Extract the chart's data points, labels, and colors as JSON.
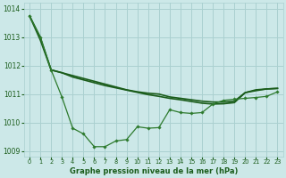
{
  "title": "Graphe pression niveau de la mer (hPa)",
  "background_color": "#cce8e8",
  "grid_color": "#aad0d0",
  "line_color1": "#1a5c1a",
  "line_color2": "#1a5c1a",
  "line_color3": "#2d7a2d",
  "xlim": [
    -0.5,
    23.5
  ],
  "ylim": [
    1008.8,
    1014.2
  ],
  "yticks": [
    1009,
    1010,
    1011,
    1012,
    1013,
    1014
  ],
  "xticks": [
    0,
    1,
    2,
    3,
    4,
    5,
    6,
    7,
    8,
    9,
    10,
    11,
    12,
    13,
    14,
    15,
    16,
    17,
    18,
    19,
    20,
    21,
    22,
    23
  ],
  "series1_x": [
    0,
    1,
    2,
    3,
    4,
    5,
    6,
    7,
    8,
    9,
    10,
    11,
    12,
    13,
    14,
    15,
    16,
    17,
    18,
    19,
    20,
    21,
    22,
    23
  ],
  "series1_y": [
    1013.75,
    1013.0,
    1011.85,
    1011.75,
    1011.65,
    1011.55,
    1011.45,
    1011.35,
    1011.25,
    1011.15,
    1011.08,
    1011.03,
    1011.0,
    1010.9,
    1010.85,
    1010.8,
    1010.75,
    1010.72,
    1010.72,
    1010.75,
    1011.05,
    1011.15,
    1011.18,
    1011.2
  ],
  "series2_x": [
    0,
    1,
    2,
    3,
    4,
    5,
    6,
    7,
    8,
    9,
    10,
    11,
    12,
    13,
    14,
    15,
    16,
    17,
    18,
    19,
    20,
    21,
    22,
    23
  ],
  "series2_y": [
    1013.75,
    1012.9,
    1011.85,
    1011.75,
    1011.6,
    1011.5,
    1011.4,
    1011.3,
    1011.22,
    1011.14,
    1011.06,
    1010.98,
    1010.92,
    1010.85,
    1010.8,
    1010.74,
    1010.68,
    1010.65,
    1010.66,
    1010.7,
    1011.05,
    1011.12,
    1011.18,
    1011.2
  ],
  "series3_x": [
    0,
    1,
    2,
    3,
    4,
    5,
    6,
    7,
    8,
    9,
    10,
    11,
    12,
    13,
    14,
    15,
    16,
    17,
    18,
    19,
    20,
    21,
    22,
    23
  ],
  "series3_y": [
    1013.75,
    1013.0,
    1011.85,
    1010.9,
    1009.8,
    1009.6,
    1009.15,
    1009.15,
    1009.35,
    1009.4,
    1009.85,
    1009.8,
    1009.82,
    1010.45,
    1010.35,
    1010.32,
    1010.35,
    1010.65,
    1010.78,
    1010.82,
    1010.85,
    1010.88,
    1010.92,
    1011.08
  ]
}
